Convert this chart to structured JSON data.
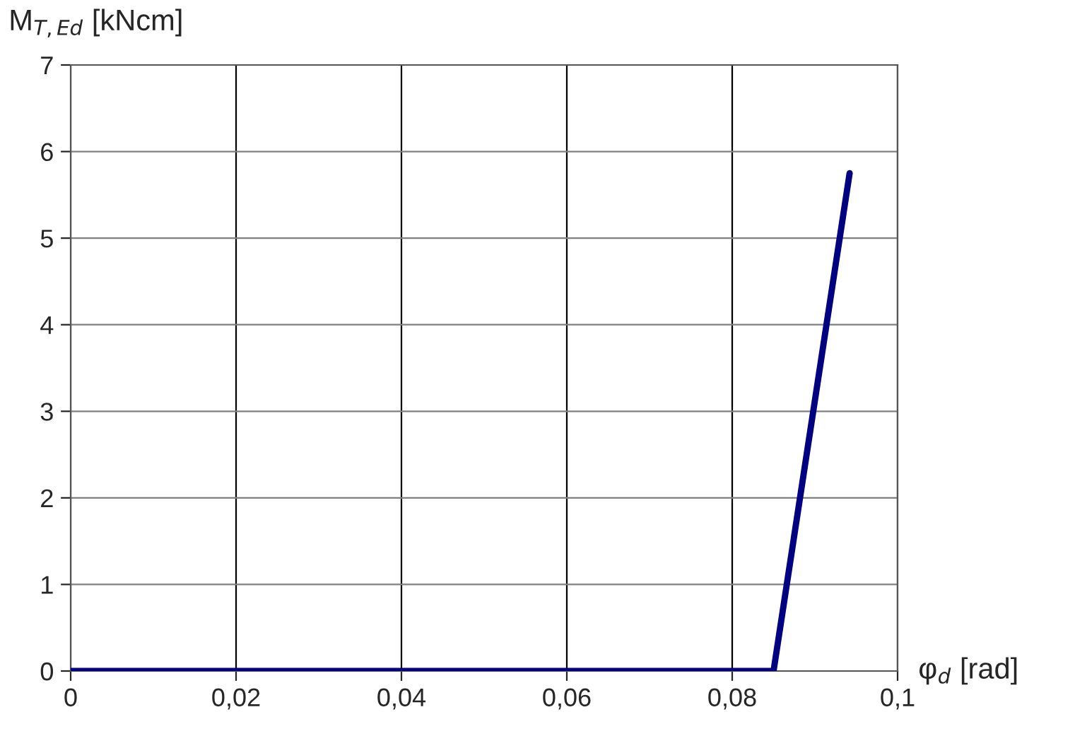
{
  "chart_data": {
    "type": "line",
    "xlabel": "φ$_{d}$ [rad]",
    "ylabel": "M$_{T,Ed}$ [kNcm]",
    "series": [
      {
        "color": "#000080",
        "x": [
          0,
          0.085,
          0.0942
        ],
        "values": [
          0,
          0,
          5.75
        ]
      }
    ],
    "xlim": [
      0,
      0.1
    ],
    "ylim": [
      0,
      7
    ],
    "xticks": [
      0,
      {
        "value": 0.02,
        "label": "0,02"
      },
      {
        "value": 0.04,
        "label": "0,04"
      },
      {
        "value": 0.06,
        "label": "0,06"
      },
      {
        "value": 0.08,
        "label": "0,08"
      },
      {
        "value": 0.1,
        "label": "0,1"
      }
    ],
    "yticks": [
      0,
      1,
      2,
      3,
      4,
      5,
      6,
      7
    ],
    "grid": true,
    "marker": "none",
    "line_style": "solid"
  }
}
